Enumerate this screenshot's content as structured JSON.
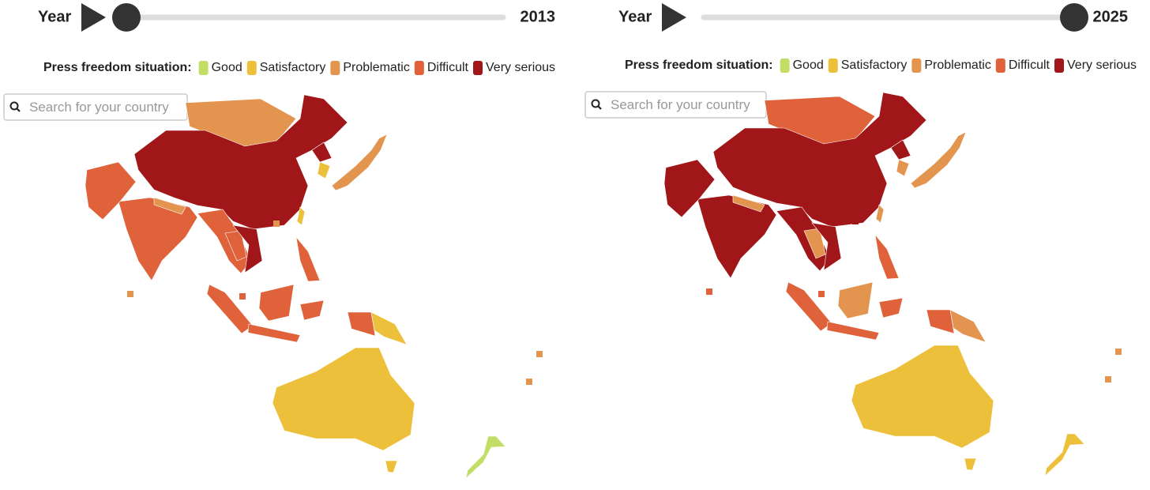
{
  "panels": [
    {
      "year_label": "Year",
      "year": "2013",
      "legend_title": "Press freedom situation:",
      "legend": [
        {
          "label": "Good",
          "color": "#c3de66"
        },
        {
          "label": "Satisfactory",
          "color": "#ecc03a"
        },
        {
          "label": "Problematic",
          "color": "#e3954f"
        },
        {
          "label": "Difficult",
          "color": "#df623b"
        },
        {
          "label": "Very serious",
          "color": "#a11618"
        }
      ],
      "search_placeholder": "Search for your country"
    },
    {
      "year_label": "Year",
      "year": "2025",
      "legend_title": "Press freedom situation:",
      "legend": [
        {
          "label": "Good",
          "color": "#c3de66"
        },
        {
          "label": "Satisfactory",
          "color": "#ecc03a"
        },
        {
          "label": "Problematic",
          "color": "#e3954f"
        },
        {
          "label": "Difficult",
          "color": "#df623b"
        },
        {
          "label": "Very serious",
          "color": "#a11618"
        }
      ],
      "search_placeholder": "Search for your country"
    }
  ]
}
